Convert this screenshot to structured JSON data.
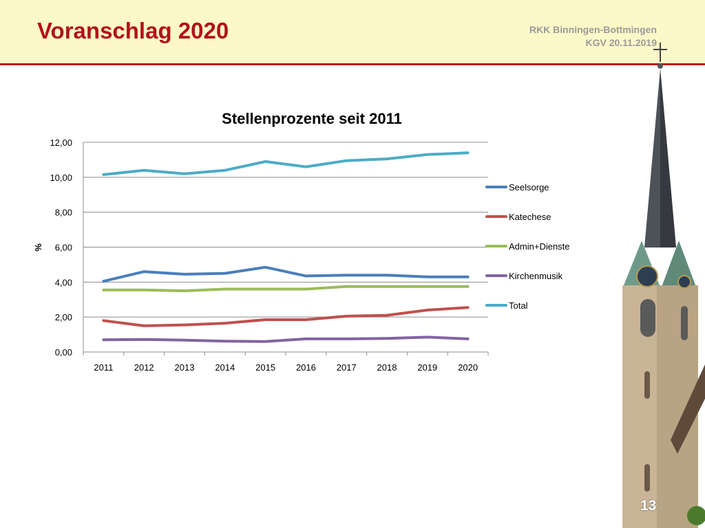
{
  "header": {
    "title": "Voranschlag 2020",
    "org_line1": "RKK Binningen-Bottmingen",
    "org_line2": "KGV 20.11.2019"
  },
  "page_number": "13",
  "chart_data": {
    "type": "line",
    "title": "Stellenprozente seit 2011",
    "xlabel": "",
    "ylabel": "%",
    "ylim": [
      0,
      12
    ],
    "yticks": [
      "0,00",
      "2,00",
      "4,00",
      "6,00",
      "8,00",
      "10,00",
      "12,00"
    ],
    "ytick_values": [
      0,
      2,
      4,
      6,
      8,
      10,
      12
    ],
    "categories": [
      "2011",
      "2012",
      "2013",
      "2014",
      "2015",
      "2016",
      "2017",
      "2018",
      "2019",
      "2020"
    ],
    "grid": "horizontal",
    "legend_position": "right",
    "series": [
      {
        "name": "Seelsorge",
        "color": "#4a7ebb",
        "values": [
          4.05,
          4.6,
          4.45,
          4.5,
          4.85,
          4.35,
          4.4,
          4.4,
          4.3,
          4.3
        ]
      },
      {
        "name": "Katechese",
        "color": "#c0504d",
        "values": [
          1.8,
          1.5,
          1.55,
          1.65,
          1.85,
          1.85,
          2.05,
          2.1,
          2.4,
          2.55
        ]
      },
      {
        "name": "Admin+Dienste",
        "color": "#9bbb59",
        "values": [
          3.55,
          3.55,
          3.5,
          3.6,
          3.6,
          3.6,
          3.75,
          3.75,
          3.75,
          3.75
        ]
      },
      {
        "name": "Kirchenmusik",
        "color": "#8064a2",
        "values": [
          0.7,
          0.72,
          0.68,
          0.62,
          0.6,
          0.75,
          0.75,
          0.78,
          0.85,
          0.75
        ]
      },
      {
        "name": "Total",
        "color": "#4bacc6",
        "values": [
          10.15,
          10.4,
          10.2,
          10.4,
          10.9,
          10.6,
          10.95,
          11.05,
          11.3,
          11.4
        ]
      }
    ]
  }
}
